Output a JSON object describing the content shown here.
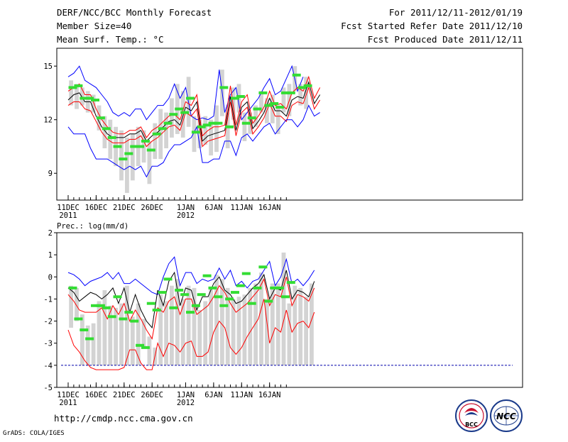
{
  "header": {
    "title": "DERF/NCC/BCC Monthly Forecast",
    "member": "Member Size=40",
    "variable": "Mean Surf. Temp.: °C",
    "period": "For 2011/12/11-2012/01/19",
    "refer": "Fcst Started Refer Date 2011/12/10",
    "produced": "Fcst Produced Date 2011/12/11"
  },
  "footer": {
    "url": "http://cmdp.ncc.cma.gov.cn",
    "credit": "GrADS: COLA/IGES",
    "logo_bcc": "BCC",
    "logo_ncc": "NCC"
  },
  "chart_data": [
    {
      "type": "line",
      "title": "Mean Surf. Temp.: °C",
      "xlabel": "",
      "ylabel": "",
      "ylim": [
        7.5,
        16
      ],
      "yticks": [
        9,
        12,
        15
      ],
      "x_tick_labels": [
        {
          "label": "11DEC",
          "sub": "2011",
          "day": 0
        },
        {
          "label": "16DEC",
          "sub": "",
          "day": 5
        },
        {
          "label": "21DEC",
          "sub": "",
          "day": 10
        },
        {
          "label": "26DEC",
          "sub": "",
          "day": 15
        },
        {
          "label": "1JAN",
          "sub": "2012",
          "day": 21
        },
        {
          "label": "6JAN",
          "sub": "",
          "day": 26
        },
        {
          "label": "11JAN",
          "sub": "",
          "day": 31
        },
        {
          "label": "16JAN",
          "sub": "",
          "day": 36
        }
      ],
      "days": 40,
      "series": [
        {
          "name": "upper",
          "color": "#0000ff",
          "values": [
            14.4,
            14.6,
            15.0,
            14.2,
            14.0,
            13.8,
            13.4,
            13.0,
            12.4,
            12.2,
            12.4,
            12.2,
            12.6,
            12.6,
            12.0,
            12.4,
            12.8,
            12.8,
            13.2,
            14.0,
            13.2,
            13.8,
            12.2,
            12.0,
            12.1,
            12.0,
            12.2,
            14.8,
            12.4,
            13.4,
            13.8,
            12.0,
            12.4,
            12.8,
            13.2,
            13.8,
            14.3,
            13.4,
            13.6,
            14.3,
            15.0,
            13.6,
            14.4
          ]
        },
        {
          "name": "red_upper",
          "color": "#ff0000",
          "values": [
            13.6,
            13.8,
            14.0,
            13.4,
            13.4,
            12.6,
            12.0,
            11.6,
            11.3,
            11.2,
            11.2,
            11.4,
            11.4,
            11.6,
            11.0,
            11.4,
            11.6,
            11.9,
            12.2,
            12.3,
            12.0,
            13.0,
            12.8,
            13.4,
            11.1,
            11.4,
            11.6,
            11.6,
            11.7,
            13.9,
            11.7,
            13.0,
            13.4,
            11.8,
            12.2,
            12.7,
            13.6,
            12.8,
            12.9,
            12.6,
            13.5,
            13.8,
            13.6,
            14.4,
            13.2,
            13.8
          ]
        },
        {
          "name": "mean",
          "color": "#000000",
          "values": [
            13.1,
            13.4,
            13.5,
            13.0,
            13.0,
            12.2,
            11.6,
            11.2,
            11.0,
            11.0,
            11.0,
            11.2,
            11.2,
            11.4,
            10.8,
            11.1,
            11.3,
            11.6,
            11.9,
            12.0,
            11.7,
            12.7,
            12.5,
            13.0,
            10.8,
            11.1,
            11.2,
            11.3,
            11.4,
            13.3,
            11.4,
            12.7,
            13.0,
            11.5,
            11.9,
            12.4,
            13.2,
            12.5,
            12.5,
            12.2,
            13.1,
            13.3,
            13.2,
            14.1,
            12.9,
            13.4
          ]
        },
        {
          "name": "red_lower",
          "color": "#ff0000",
          "values": [
            12.8,
            13.0,
            13.0,
            12.6,
            12.5,
            11.9,
            11.3,
            10.9,
            10.7,
            10.7,
            10.7,
            10.9,
            10.9,
            11.1,
            10.5,
            10.8,
            11.0,
            11.3,
            11.6,
            11.7,
            11.4,
            12.4,
            12.2,
            12.6,
            10.5,
            10.8,
            10.9,
            11.0,
            11.1,
            13.0,
            11.1,
            12.4,
            12.7,
            11.2,
            11.6,
            12.1,
            12.9,
            12.2,
            12.2,
            11.9,
            12.8,
            13.0,
            12.9,
            13.8,
            12.6,
            13.1
          ]
        },
        {
          "name": "lower",
          "color": "#0000ff",
          "values": [
            11.6,
            11.2,
            11.2,
            11.2,
            10.4,
            9.8,
            9.8,
            9.8,
            9.6,
            9.4,
            9.2,
            9.4,
            9.2,
            9.4,
            8.8,
            9.4,
            9.4,
            9.6,
            10.2,
            10.6,
            10.6,
            10.8,
            11.0,
            11.6,
            9.6,
            9.6,
            9.8,
            9.8,
            10.8,
            10.8,
            10.0,
            11.0,
            11.2,
            10.8,
            11.2,
            11.6,
            11.8,
            11.2,
            11.6,
            12.0,
            12.0,
            11.6,
            12.0,
            12.8,
            12.2,
            12.4
          ]
        }
      ],
      "boxes": [
        [
          12.8,
          14.2
        ],
        [
          12.6,
          14.0
        ],
        [
          12.8,
          13.8
        ],
        [
          12.4,
          13.6
        ],
        [
          12.4,
          13.4
        ],
        [
          11.4,
          12.8
        ],
        [
          10.4,
          12.2
        ],
        [
          9.8,
          12.0
        ],
        [
          9.4,
          11.6
        ],
        [
          8.6,
          11.4
        ],
        [
          7.9,
          11.0
        ],
        [
          8.6,
          11.2
        ],
        [
          9.4,
          11.6
        ],
        [
          9.6,
          11.4
        ],
        [
          8.4,
          10.8
        ],
        [
          9.8,
          11.8
        ],
        [
          9.8,
          12.6
        ],
        [
          10.4,
          12.4
        ],
        [
          11.0,
          13.2
        ],
        [
          11.2,
          14.0
        ],
        [
          11.0,
          13.6
        ],
        [
          11.6,
          14.4
        ],
        [
          10.2,
          12.2
        ],
        [
          10.4,
          12.0
        ],
        [
          10.6,
          12.2
        ],
        [
          10.0,
          12.0
        ],
        [
          10.2,
          12.8
        ],
        [
          12.2,
          14.8
        ],
        [
          10.4,
          12.4
        ],
        [
          12.0,
          13.8
        ],
        [
          12.4,
          14.0
        ],
        [
          10.8,
          12.4
        ],
        [
          11.2,
          12.4
        ],
        [
          11.6,
          12.8
        ],
        [
          12.4,
          13.6
        ],
        [
          11.8,
          13.2
        ],
        [
          11.8,
          13.4
        ],
        [
          11.2,
          12.8
        ],
        [
          12.4,
          13.8
        ],
        [
          12.2,
          14.0
        ],
        [
          13.6,
          15.0
        ],
        [
          12.8,
          14.0
        ],
        [
          12.6,
          14.4
        ]
      ],
      "markers": [
        13.8,
        13.9,
        13.2,
        13.2,
        13.1,
        12.1,
        11.5,
        11.0,
        10.5,
        9.8,
        10.1,
        10.5,
        10.5,
        10.8,
        10.3,
        11.2,
        11.5,
        11.8,
        12.3,
        12.6,
        12.4,
        13.2,
        11.3,
        11.6,
        11.7,
        11.8,
        11.8,
        13.8,
        11.6,
        13.2,
        13.3,
        11.8,
        12.1,
        12.6,
        13.5,
        12.8,
        12.9,
        12.7,
        13.5,
        13.5,
        14.5,
        13.8,
        13.9
      ]
    },
    {
      "type": "line",
      "title": "Prec.: log(mm/d)",
      "xlabel": "",
      "ylabel": "",
      "ylim": [
        -5,
        2
      ],
      "yticks": [
        -5,
        -4,
        -3,
        -2,
        -1,
        0,
        1,
        2
      ],
      "x_tick_labels": [
        {
          "label": "11DEC",
          "sub": "2011",
          "day": 0
        },
        {
          "label": "16DEC",
          "sub": "",
          "day": 5
        },
        {
          "label": "21DEC",
          "sub": "",
          "day": 10
        },
        {
          "label": "26DEC",
          "sub": "",
          "day": 15
        },
        {
          "label": "1JAN",
          "sub": "2012",
          "day": 21
        },
        {
          "label": "6JAN",
          "sub": "",
          "day": 26
        },
        {
          "label": "11JAN",
          "sub": "",
          "day": 31
        },
        {
          "label": "16JAN",
          "sub": "",
          "day": 36
        }
      ],
      "days": 40,
      "baseline": -4,
      "series": [
        {
          "name": "upper",
          "color": "#0000ff",
          "values": [
            0.2,
            0.1,
            -0.1,
            -0.4,
            -0.2,
            -0.1,
            0.0,
            0.2,
            -0.1,
            0.2,
            -0.3,
            -0.3,
            -0.1,
            -0.3,
            -0.5,
            -0.7,
            -0.8,
            0.0,
            0.6,
            0.9,
            -0.4,
            0.2,
            0.2,
            -0.3,
            -0.1,
            -0.2,
            -0.1,
            0.4,
            -0.1,
            0.3,
            -0.4,
            -0.2,
            -0.5,
            -0.2,
            -0.1,
            0.3,
            0.7,
            -0.4,
            0.0,
            0.8,
            -0.3,
            -0.1,
            -0.4,
            -0.1,
            0.3
          ]
        },
        {
          "name": "mean",
          "color": "#000000",
          "values": [
            -0.5,
            -0.7,
            -1.1,
            -0.9,
            -0.7,
            -0.8,
            -1.0,
            -0.8,
            -0.5,
            -1.2,
            -0.5,
            -1.6,
            -0.8,
            -1.5,
            -2.0,
            -2.3,
            -0.6,
            -1.3,
            -0.2,
            0.2,
            -1.3,
            -0.5,
            -0.6,
            -1.5,
            -0.9,
            -0.9,
            -0.3,
            0.0,
            -0.6,
            -0.8,
            -1.2,
            -1.1,
            -0.8,
            -0.5,
            -0.3,
            0.1,
            -1.0,
            -0.5,
            -0.6,
            0.3,
            -1.0,
            -0.6,
            -0.7,
            -0.9,
            -0.2
          ]
        },
        {
          "name": "red_upper",
          "color": "#ff0000",
          "values": [
            -0.8,
            -1.1,
            -1.5,
            -1.6,
            -1.6,
            -1.6,
            -1.4,
            -1.9,
            -1.3,
            -1.7,
            -1.2,
            -2.0,
            -1.5,
            -1.9,
            -2.4,
            -2.8,
            -1.4,
            -1.6,
            -1.1,
            -0.9,
            -1.7,
            -1.0,
            -1.0,
            -1.7,
            -1.5,
            -1.3,
            -0.9,
            -0.4,
            -0.7,
            -1.2,
            -1.6,
            -1.4,
            -1.2,
            -0.9,
            -0.6,
            -0.1,
            -1.3,
            -0.8,
            -0.9,
            0.0,
            -1.3,
            -0.8,
            -0.9,
            -1.1,
            -0.5
          ]
        },
        {
          "name": "red_lower",
          "color": "#ff0000",
          "values": [
            -2.4,
            -3.1,
            -3.4,
            -3.8,
            -4.1,
            -4.2,
            -4.2,
            -4.2,
            -4.2,
            -4.2,
            -4.1,
            -3.3,
            -3.3,
            -3.9,
            -4.2,
            -4.2,
            -3.0,
            -3.6,
            -3.0,
            -3.1,
            -3.4,
            -3.0,
            -2.9,
            -3.6,
            -3.6,
            -3.4,
            -2.5,
            -2.0,
            -2.3,
            -3.2,
            -3.5,
            -3.2,
            -2.7,
            -2.3,
            -1.9,
            -1.0,
            -3.0,
            -2.3,
            -2.5,
            -1.5,
            -2.5,
            -2.1,
            -2.0,
            -2.3,
            -1.6
          ]
        }
      ],
      "boxes": [
        [
          -2.3,
          -0.4
        ],
        [
          -2.0,
          -0.5
        ],
        [
          -4.0,
          -1.7
        ],
        [
          -4.0,
          -2.2
        ],
        [
          -4.0,
          -2.1
        ],
        [
          -4.0,
          -1.1
        ],
        [
          -4.0,
          -0.6
        ],
        [
          -4.0,
          -1.3
        ],
        [
          -4.0,
          -1.4
        ],
        [
          -4.0,
          -1.2
        ],
        [
          -4.0,
          -0.4
        ],
        [
          -4.0,
          -1.8
        ],
        [
          -4.0,
          -1.2
        ],
        [
          -3.2,
          -1.9
        ],
        [
          -4.0,
          -2.7
        ],
        [
          -4.0,
          -3.2
        ],
        [
          -4.0,
          -0.8
        ],
        [
          -4.0,
          -1.1
        ],
        [
          -4.0,
          -0.4
        ],
        [
          -4.0,
          -0.1
        ],
        [
          -4.0,
          -1.0
        ],
        [
          -4.0,
          -0.4
        ],
        [
          -4.0,
          -0.5
        ],
        [
          -4.0,
          -1.5
        ],
        [
          -4.0,
          -1.1
        ],
        [
          -4.0,
          -0.5
        ],
        [
          -4.0,
          0.1
        ],
        [
          -4.0,
          -0.1
        ],
        [
          -4.0,
          -0.5
        ],
        [
          -4.0,
          -1.0
        ],
        [
          -4.0,
          -0.9
        ],
        [
          -4.0,
          -0.8
        ],
        [
          -4.0,
          -0.5
        ],
        [
          -4.0,
          -0.3
        ],
        [
          -4.0,
          0.2
        ],
        [
          -4.0,
          -1.0
        ],
        [
          -4.0,
          -0.3
        ],
        [
          -4.0,
          -0.3
        ],
        [
          -4.0,
          1.1
        ],
        [
          -4.0,
          -1.2
        ],
        [
          -4.0,
          -0.4
        ],
        [
          -4.0,
          -0.5
        ],
        [
          -4.0,
          -0.9
        ],
        [
          -4.0,
          -0.3
        ]
      ],
      "markers": [
        -0.5,
        -1.9,
        -2.4,
        -2.8,
        -1.3,
        -1.3,
        -1.4,
        -1.8,
        -0.9,
        -1.9,
        -1.6,
        -2.0,
        -3.1,
        -3.2,
        -1.2,
        -1.5,
        -0.7,
        -0.1,
        -1.4,
        -0.6,
        -0.8,
        -1.6,
        -1.3,
        -0.8,
        0.05,
        -0.5,
        -0.9,
        -1.3,
        -1.0,
        -0.7,
        -0.4,
        0.15,
        -1.2,
        -0.5,
        0.45,
        -1.1,
        -0.5,
        -0.5,
        -0.9,
        -0.25
      ]
    }
  ]
}
